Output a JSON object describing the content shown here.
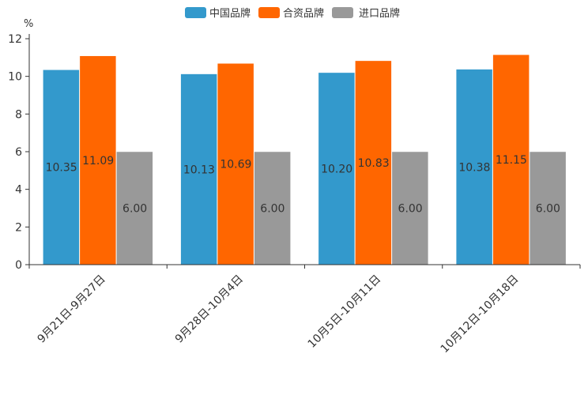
{
  "chart_data": {
    "type": "bar",
    "title": "",
    "xlabel": "",
    "ylabel": "%",
    "ylim": [
      0,
      12
    ],
    "yticks": [
      0,
      2,
      4,
      6,
      8,
      10,
      12
    ],
    "grid": false,
    "legend": "top-center",
    "categories": [
      "9月21日-9月27日",
      "9月28日-10月4日",
      "10月5日-10月11日",
      "10月12日-10月18日"
    ],
    "series": [
      {
        "name": "中国品牌",
        "color": "#3399CC",
        "values": [
          10.35,
          10.13,
          10.2,
          10.38
        ]
      },
      {
        "name": "合资品牌",
        "color": "#FF6600",
        "values": [
          11.09,
          10.69,
          10.83,
          11.15
        ]
      },
      {
        "name": "进口品牌",
        "color": "#999999",
        "values": [
          6.0,
          6.0,
          6.0,
          6.0
        ]
      }
    ],
    "data_labels": [
      [
        "10.35",
        "10.13",
        "10.20",
        "10.38"
      ],
      [
        "11.09",
        "10.69",
        "10.83",
        "11.15"
      ],
      [
        "6.00",
        "6.00",
        "6.00",
        "6.00"
      ]
    ]
  }
}
